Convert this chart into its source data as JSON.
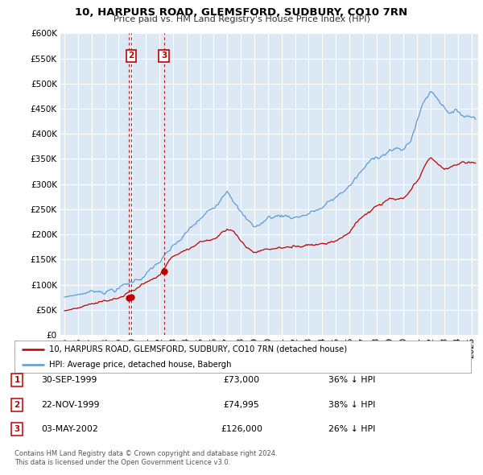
{
  "title": "10, HARPURS ROAD, GLEMSFORD, SUDBURY, CO10 7RN",
  "subtitle": "Price paid vs. HM Land Registry's House Price Index (HPI)",
  "background_color": "#ffffff",
  "plot_bg_color": "#dce9f5",
  "grid_color": "#ffffff",
  "hpi_color": "#5b9bd5",
  "price_color": "#c00000",
  "transactions": [
    {
      "num": 1,
      "date_label": "30-SEP-1999",
      "date_x": 1999.75,
      "price": 73000,
      "pct": "36% ↓ HPI"
    },
    {
      "num": 2,
      "date_label": "22-NOV-1999",
      "date_x": 1999.92,
      "price": 74995,
      "pct": "38% ↓ HPI"
    },
    {
      "num": 3,
      "date_label": "03-MAY-2002",
      "date_x": 2002.33,
      "price": 126000,
      "pct": "26% ↓ HPI"
    }
  ],
  "legend_label_price": "10, HARPURS ROAD, GLEMSFORD, SUDBURY, CO10 7RN (detached house)",
  "legend_label_hpi": "HPI: Average price, detached house, Babergh",
  "footer_line1": "Contains HM Land Registry data © Crown copyright and database right 2024.",
  "footer_line2": "This data is licensed under the Open Government Licence v3.0.",
  "ylim": [
    0,
    600000
  ],
  "xlim_start": 1994.7,
  "xlim_end": 2025.5,
  "yticks": [
    0,
    50000,
    100000,
    150000,
    200000,
    250000,
    300000,
    350000,
    400000,
    450000,
    500000,
    550000,
    600000
  ],
  "xticks": [
    1995,
    1996,
    1997,
    1998,
    1999,
    2000,
    2001,
    2002,
    2003,
    2004,
    2005,
    2006,
    2007,
    2008,
    2009,
    2010,
    2011,
    2012,
    2013,
    2014,
    2015,
    2016,
    2017,
    2018,
    2019,
    2020,
    2021,
    2022,
    2023,
    2024,
    2025
  ],
  "hpi_anchors_x": [
    1995.0,
    1996.0,
    1997.0,
    1998.0,
    1999.0,
    2000.0,
    2001.0,
    2002.0,
    2003.0,
    2004.0,
    2005.0,
    2006.0,
    2007.0,
    2007.5,
    2008.0,
    2008.5,
    2009.0,
    2009.5,
    2010.0,
    2011.0,
    2012.0,
    2013.0,
    2014.0,
    2015.0,
    2016.0,
    2017.0,
    2018.0,
    2019.0,
    2020.0,
    2020.5,
    2021.0,
    2021.5,
    2022.0,
    2022.5,
    2023.0,
    2023.5,
    2024.0,
    2024.5,
    2025.3
  ],
  "hpi_anchors_y": [
    75000,
    80000,
    87000,
    93000,
    100000,
    112000,
    130000,
    152000,
    175000,
    200000,
    225000,
    245000,
    295000,
    280000,
    255000,
    235000,
    225000,
    230000,
    242000,
    248000,
    248000,
    258000,
    268000,
    285000,
    310000,
    340000,
    365000,
    385000,
    380000,
    400000,
    440000,
    480000,
    500000,
    490000,
    475000,
    468000,
    465000,
    460000,
    460000
  ],
  "price_anchors_x": [
    1995.0,
    1996.0,
    1997.0,
    1998.0,
    1999.0,
    1999.75,
    2000.0,
    2001.0,
    2002.0,
    2002.33,
    2003.0,
    2004.0,
    2005.0,
    2006.0,
    2007.0,
    2007.5,
    2008.0,
    2008.5,
    2009.0,
    2010.0,
    2011.0,
    2012.0,
    2013.0,
    2014.0,
    2015.0,
    2016.0,
    2017.0,
    2018.0,
    2019.0,
    2020.0,
    2021.0,
    2021.5,
    2022.0,
    2022.5,
    2023.0,
    2023.5,
    2024.0,
    2024.5,
    2025.3
  ],
  "price_anchors_y": [
    48000,
    52000,
    56000,
    60000,
    65000,
    73000,
    78000,
    95000,
    110000,
    126000,
    148000,
    170000,
    185000,
    195000,
    220000,
    215000,
    195000,
    182000,
    175000,
    182000,
    185000,
    185000,
    195000,
    200000,
    210000,
    230000,
    260000,
    278000,
    290000,
    285000,
    315000,
    340000,
    360000,
    350000,
    335000,
    340000,
    348000,
    350000,
    350000
  ]
}
